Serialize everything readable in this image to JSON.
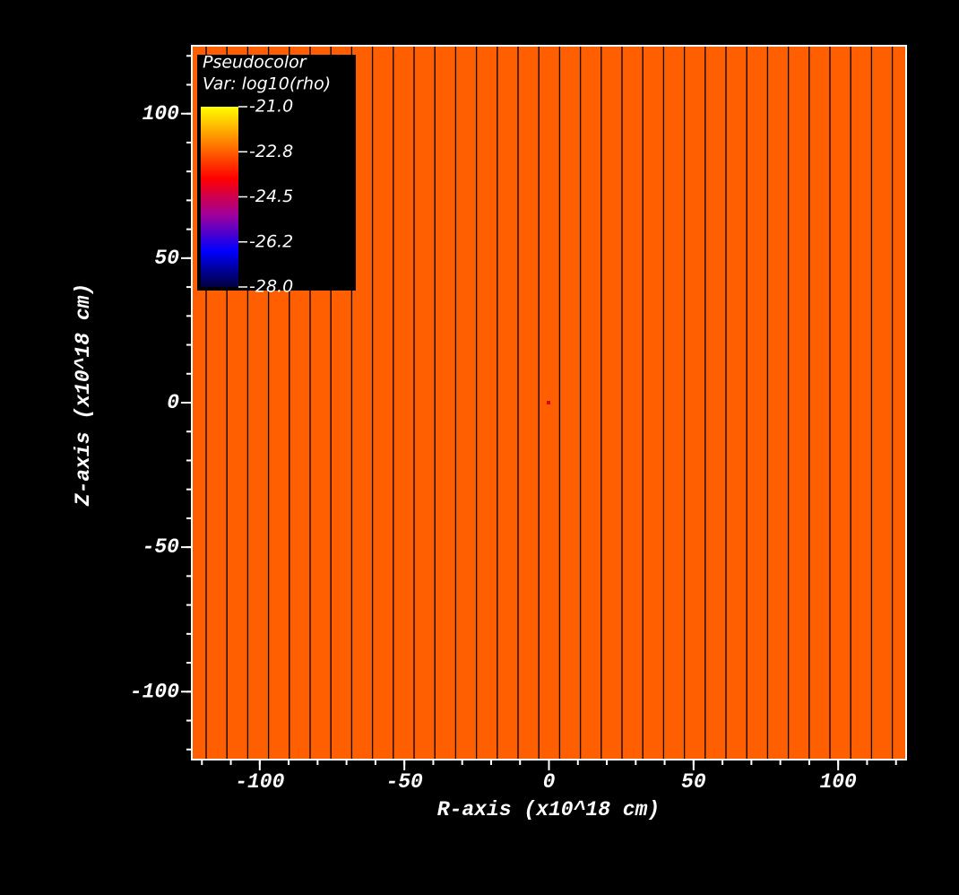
{
  "chart_data": {
    "type": "pseudocolor",
    "legend_title": "Pseudocolor",
    "legend_variable": "Var: log10(rho)",
    "x_label": "R-axis (x10^18 cm)",
    "y_label": "Z-axis (x10^18 cm)",
    "xlim": [
      -123.5,
      123.5
    ],
    "ylim": [
      -123.5,
      123.5
    ],
    "xticks": [
      -100,
      -50,
      0,
      50,
      100
    ],
    "yticks": [
      -100,
      -50,
      0,
      50,
      100
    ],
    "field_color": "#ff5f00",
    "mesh_color": "#000000",
    "colorbar_lim": [
      -28.0,
      -21.0
    ],
    "colorbar_ticks": [
      {
        "value": -21.0,
        "label": "-21.0"
      },
      {
        "value": -22.75,
        "label": "-22.8"
      },
      {
        "value": -24.5,
        "label": "-24.5"
      },
      {
        "value": -26.25,
        "label": "-26.2"
      },
      {
        "value": -28.0,
        "label": "-28.0"
      }
    ],
    "colormap": [
      "#000040",
      "#0000ff",
      "#a0009a",
      "#ff0000",
      "#ff8000",
      "#ffff00"
    ]
  }
}
